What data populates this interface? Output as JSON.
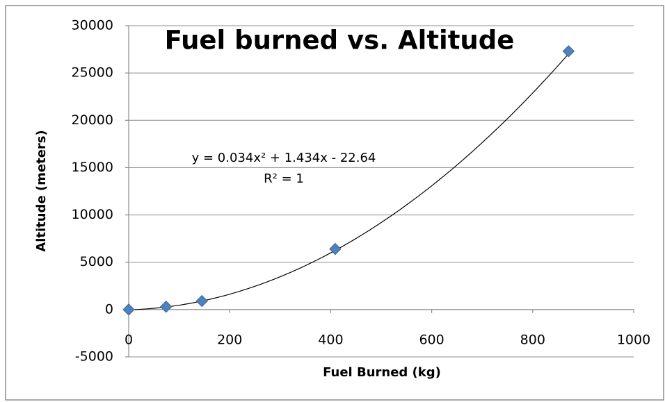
{
  "chart_data": {
    "type": "scatter",
    "title": "Fuel burned vs. Altitude",
    "x_label": "Fuel Burned (kg)",
    "y_label": "Altitude (meters)",
    "series": [
      {
        "name": "Altitude",
        "color": "#4f81bd",
        "x": [
          0,
          74,
          145,
          409,
          871
        ],
        "values": [
          0,
          300,
          900,
          6400,
          27300
        ]
      }
    ],
    "trendline": {
      "type": "polynomial",
      "coefficients": [
        0.034,
        1.434,
        -22.64
      ],
      "equation": "y = 0.034x² + 1.434x - 22.64",
      "r2_label": "R² = 1"
    },
    "xlim": [
      0,
      1000
    ],
    "xticks": [
      0,
      200,
      400,
      600,
      800,
      1000
    ],
    "ylim": [
      -5000,
      30000
    ],
    "yticks": [
      -5000,
      0,
      5000,
      10000,
      15000,
      20000,
      25000,
      30000
    ],
    "grid": true
  }
}
